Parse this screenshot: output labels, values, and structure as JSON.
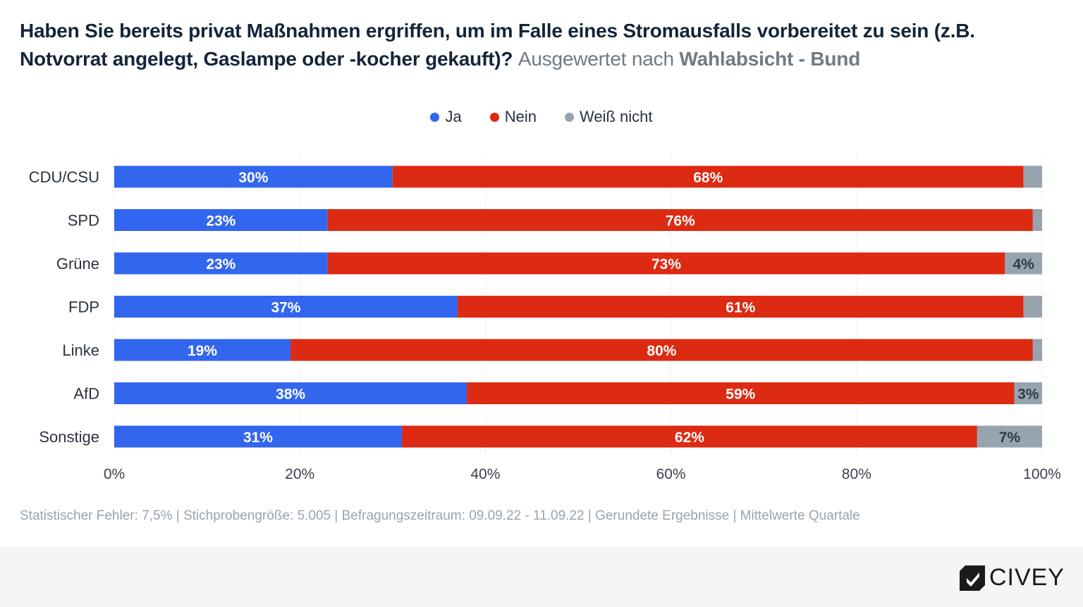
{
  "title": {
    "main": "Haben Sie bereits privat Maßnahmen ergriffen, um im Falle eines Stromausfalls vorbereitet zu sein (z.B. Notvorrat angelegt, Gaslampe oder -kocher gekauft)?",
    "sub": "Ausgewertet nach",
    "sub_strong": "Wahlabsicht - Bund"
  },
  "footnote": "Statistischer Fehler: 7,5% | Stichprobengröße: 5.005 | Befragungszeitraum: 09.09.22 - 11.09.22 | Gerundete Ergebnisse | Mittelwerte Quartale",
  "logo": {
    "text": "CIVEY"
  },
  "colors": {
    "ja": "#3366ee",
    "nein": "#dd2a12",
    "weiss": "#97a3ae"
  },
  "chart_data": {
    "type": "bar",
    "orientation": "horizontal",
    "stacked": true,
    "categories": [
      "CDU/CSU",
      "SPD",
      "Grüne",
      "FDP",
      "Linke",
      "AfD",
      "Sonstige"
    ],
    "series": [
      {
        "name": "Ja",
        "values": [
          30,
          23,
          23,
          37,
          19,
          38,
          31
        ],
        "labels": [
          "30%",
          "23%",
          "23%",
          "37%",
          "19%",
          "38%",
          "31%"
        ]
      },
      {
        "name": "Nein",
        "values": [
          68,
          76,
          73,
          61,
          80,
          59,
          62
        ],
        "labels": [
          "68%",
          "76%",
          "73%",
          "61%",
          "80%",
          "59%",
          "62%"
        ]
      },
      {
        "name": "Weiß nicht",
        "values": [
          2,
          1,
          4,
          2,
          1,
          3,
          7
        ],
        "labels": [
          "",
          "",
          "4%",
          "",
          "",
          "3%",
          "7%"
        ]
      }
    ],
    "xlim": [
      0,
      100
    ],
    "xticks": [
      "0%",
      "20%",
      "40%",
      "60%",
      "80%",
      "100%"
    ],
    "grid": true,
    "legend": "top-center"
  }
}
